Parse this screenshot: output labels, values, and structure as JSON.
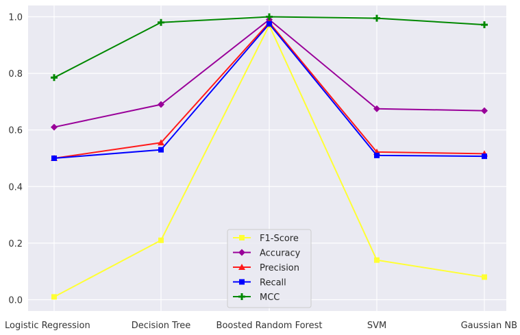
{
  "chart_data": {
    "type": "line",
    "title": "",
    "xlabel": "",
    "ylabel": "",
    "categories": [
      "Logistic Regression",
      "Decision Tree",
      "Boosted Random Forest",
      "SVM",
      "Gaussian NB"
    ],
    "ylim": [
      -0.04,
      1.04
    ],
    "yticks": [
      "0.0",
      "0.2",
      "0.4",
      "0.6",
      "0.8",
      "1.0"
    ],
    "grid": true,
    "legend_position": "bottom-center",
    "series": [
      {
        "name": "F1-Score",
        "color": "#ffff33",
        "marker": "square",
        "values": [
          0.01,
          0.21,
          0.97,
          0.14,
          0.08
        ]
      },
      {
        "name": "Accuracy",
        "color": "#990099",
        "marker": "diamond",
        "values": [
          0.61,
          0.69,
          0.99,
          0.675,
          0.668
        ]
      },
      {
        "name": "Precision",
        "color": "#ff1a1a",
        "marker": "triangle",
        "values": [
          0.5,
          0.555,
          0.98,
          0.522,
          0.516
        ]
      },
      {
        "name": "Recall",
        "color": "#0000ff",
        "marker": "square",
        "values": [
          0.5,
          0.53,
          0.975,
          0.51,
          0.507
        ]
      },
      {
        "name": "MCC",
        "color": "#008800",
        "marker": "plus",
        "values": [
          0.785,
          0.98,
          1.0,
          0.995,
          0.972
        ]
      }
    ]
  }
}
